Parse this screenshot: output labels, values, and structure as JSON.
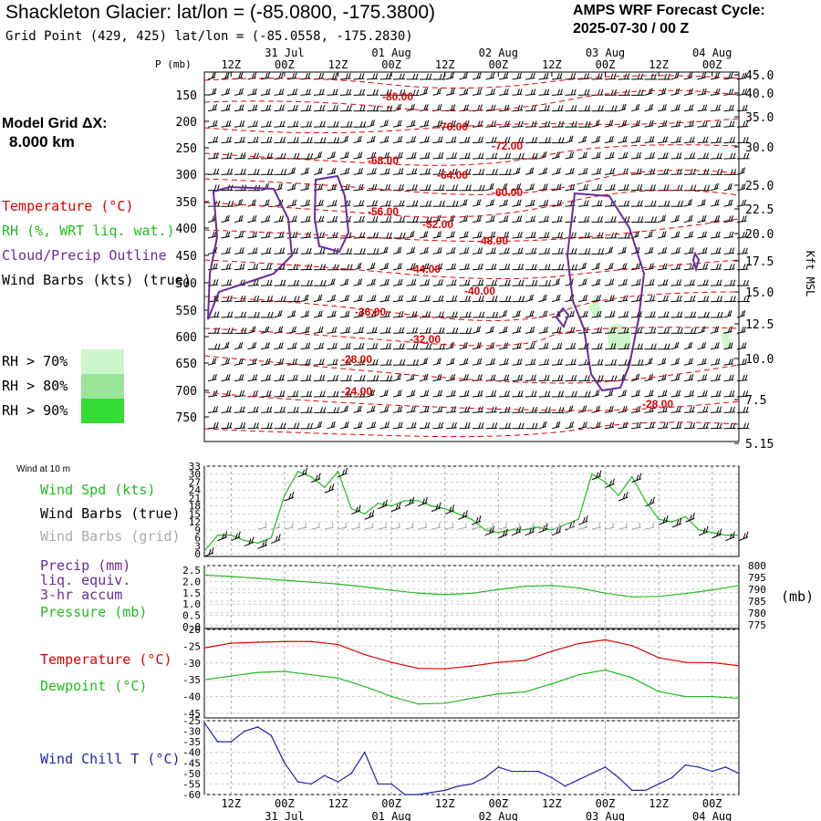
{
  "header": {
    "title": "Shackleton Glacier:  lat/lon = (-85.0800, -175.3800)",
    "subtitle": "Grid Point (429, 425) lat/lon = (-85.0558, -175.2830)",
    "forecast_line1": "AMPS WRF Forecast Cycle:",
    "forecast_line2": "2025-07-30 / 00  Z",
    "grid_label": "Model Grid ΔX:",
    "grid_value": "8.000 km"
  },
  "legend": {
    "temperature": "Temperature (°C)",
    "rh": "RH (%, WRT liq. wat.)",
    "cloud": "Cloud/Precip Outline",
    "wind": "Wind Barbs (kts) (true)",
    "rh70": "RH > 70%",
    "rh80": "RH > 80%",
    "rh90": "RH > 90%"
  },
  "colors": {
    "temperature": "#e00000",
    "rh70": "#ccf7cc",
    "rh80": "#99e699",
    "rh90": "#33dd33",
    "cloud": "#6a2a9a",
    "green": "#22bb22",
    "blue": "#2222aa",
    "grid_gray": "#999999"
  },
  "time_axis": {
    "hour_labels": [
      "12Z",
      "00Z",
      "12Z",
      "00Z",
      "12Z",
      "00Z",
      "12Z",
      "00Z",
      "12Z",
      "00Z"
    ],
    "date_labels": [
      "31 Jul",
      "01 Aug",
      "02 Aug",
      "03 Aug",
      "04 Aug"
    ]
  },
  "upper_panel": {
    "p_axis_title": "P (mb)",
    "right_axis_title": "Kft MSL",
    "pressure_ticks": [
      "150",
      "200",
      "250",
      "300",
      "350",
      "400",
      "450",
      "500",
      "550",
      "600",
      "650",
      "700",
      "750"
    ],
    "height_ticks": [
      "45.0",
      "40.0",
      "35.0",
      "30.0",
      "25.0",
      "22.5",
      "20.0",
      "17.5",
      "15.0",
      "12.5",
      "10.0",
      "7.5",
      "5.15"
    ],
    "temp_labels": [
      "-80.00",
      "-76.00",
      "-72.00",
      "-68.00",
      "-64.00",
      "-60.00",
      "-56.00",
      "-52.00",
      "-48.00",
      "-44.00",
      "-40.00",
      "-36.00",
      "-32.00",
      "-28.00",
      "-24.00",
      "-28.00"
    ]
  },
  "wind10": {
    "title": "Wind at 10 m",
    "spd_label": "Wind Spd (kts)",
    "barbs_true": "Wind Barbs (true)",
    "barbs_grid": "Wind Barbs (grid)",
    "y_ticks": [
      "33",
      "30",
      "27",
      "24",
      "21",
      "18",
      "15",
      "12",
      "9",
      "6",
      "3",
      "0"
    ]
  },
  "precip": {
    "label1": "Precip (mm)",
    "label2": "liq. equiv.",
    "label3": "3-hr accum",
    "label4": "Pressure (mb)",
    "right_unit": "(mb)",
    "left_ticks": [
      "2.5",
      "2.0",
      "1.5",
      "1.0",
      "0.5",
      "0.0"
    ],
    "right_ticks": [
      "800",
      "795",
      "790",
      "785",
      "780",
      "775"
    ]
  },
  "temp_panel": {
    "temp_label": "Temperature (°C)",
    "dew_label": "Dewpoint (°C)",
    "y_ticks": [
      "-20",
      "-25",
      "-30",
      "-35",
      "-40",
      "-45"
    ]
  },
  "chill_panel": {
    "label": "Wind Chill T (°C)",
    "y_ticks": [
      "-25",
      "-30",
      "-35",
      "-40",
      "-45",
      "-50",
      "-55",
      "-60"
    ]
  },
  "chart_data": [
    {
      "type": "line",
      "title": "Wind Spd (kts)",
      "ylim": [
        0,
        33
      ],
      "x": [
        0,
        3,
        6,
        9,
        12,
        15,
        18,
        21,
        24,
        27,
        30,
        33,
        36,
        39,
        42,
        45,
        48,
        51,
        54,
        57,
        60,
        63,
        66,
        69,
        72,
        75,
        78,
        81,
        84,
        87,
        90,
        93,
        96,
        99,
        102,
        105,
        108,
        111,
        114,
        117,
        120
      ],
      "series": [
        {
          "name": "Wind Spd (kts)",
          "values": [
            1,
            7,
            7,
            5,
            4,
            6,
            22,
            31,
            29,
            25,
            31,
            17,
            15,
            19,
            18,
            20,
            20,
            18,
            17,
            15,
            13,
            9,
            8,
            9,
            9,
            10,
            9,
            11,
            13,
            30,
            27,
            22,
            29,
            20,
            13,
            12,
            14,
            9,
            8,
            7,
            7
          ]
        }
      ]
    },
    {
      "type": "line",
      "title": "Pressure (mb)",
      "ylim": [
        775,
        800
      ],
      "x": [
        0,
        6,
        12,
        18,
        24,
        30,
        36,
        42,
        48,
        54,
        60,
        66,
        72,
        78,
        84,
        90,
        96,
        102,
        108,
        114,
        120
      ],
      "series": [
        {
          "name": "Pressure (mb)",
          "values": [
            796,
            795.4,
            794.6,
            793.8,
            793,
            792.2,
            791,
            789.6,
            788.4,
            787.8,
            788.3,
            789.9,
            791.3,
            791.6,
            790.6,
            788.4,
            786.8,
            787,
            788.2,
            789.7,
            791.6
          ]
        }
      ]
    },
    {
      "type": "line",
      "title": "Temperature / Dewpoint (°C)",
      "ylim": [
        -45,
        -20
      ],
      "x": [
        0,
        6,
        12,
        18,
        24,
        30,
        36,
        42,
        48,
        54,
        60,
        66,
        72,
        78,
        84,
        90,
        96,
        102,
        108,
        114,
        120
      ],
      "series": [
        {
          "name": "Temperature (°C)",
          "values": [
            -25.5,
            -24.1,
            -23.8,
            -23.6,
            -23.6,
            -24.5,
            -27.5,
            -29.8,
            -31.6,
            -31.7,
            -30.9,
            -29.8,
            -29.2,
            -26.5,
            -24.2,
            -23.1,
            -24.8,
            -28.4,
            -29.8,
            -29.9,
            -30.8
          ]
        },
        {
          "name": "Dewpoint (°C)",
          "values": [
            -35,
            -33.9,
            -32.8,
            -32.5,
            -33.5,
            -34.5,
            -37,
            -40,
            -42.2,
            -42,
            -40.5,
            -39.2,
            -38.6,
            -36.2,
            -33.5,
            -32.1,
            -34.4,
            -38.5,
            -40,
            -40,
            -40.5
          ]
        }
      ]
    },
    {
      "type": "line",
      "title": "Wind Chill T (°C)",
      "ylim": [
        -60,
        -25
      ],
      "x": [
        0,
        3,
        6,
        9,
        12,
        15,
        18,
        21,
        24,
        27,
        30,
        33,
        36,
        39,
        42,
        45,
        48,
        51,
        54,
        57,
        60,
        63,
        66,
        69,
        72,
        75,
        78,
        81,
        84,
        87,
        90,
        93,
        96,
        99,
        102,
        105,
        108,
        111,
        114,
        117,
        120
      ],
      "series": [
        {
          "name": "Wind Chill T (°C)",
          "values": [
            -26,
            -35,
            -35,
            -30,
            -28,
            -32,
            -45,
            -54,
            -55,
            -51,
            -54,
            -50,
            -40,
            -55,
            -55,
            -60,
            -60,
            -59,
            -58,
            -56,
            -55,
            -52,
            -47,
            -49,
            -49,
            -49,
            -52,
            -56,
            -53,
            -50,
            -47,
            -52,
            -58,
            -58,
            -55,
            -52,
            -46,
            -47,
            -49,
            -47,
            -50
          ]
        }
      ]
    }
  ]
}
